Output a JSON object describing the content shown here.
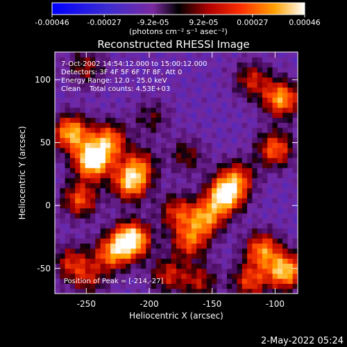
{
  "chart_data": {
    "type": "heatmap",
    "title": "Reconstructed RHESSI Image",
    "xlabel": "Heliocentric X (arcsec)",
    "ylabel": "Heliocentric Y (arcsec)",
    "xlim": [
      -275,
      -82
    ],
    "ylim": [
      -70,
      122
    ],
    "x_ticks": [
      -250,
      -200,
      -150,
      -100
    ],
    "y_ticks": [
      -50,
      0,
      50,
      100
    ],
    "grid": false,
    "colorbar": {
      "range": [
        -0.00046,
        0.00046
      ],
      "tick_values": [
        -0.00046,
        -0.00027,
        -9.2e-05,
        9.2e-05,
        0.00027,
        0.00046
      ],
      "tick_labels": [
        "-0.00046",
        "-0.00027",
        "-9.2e-05",
        "9.2e-05",
        "0.00027",
        "0.00046"
      ],
      "unit_label": "(photons cm⁻² s⁻¹ asec⁻²)"
    },
    "annotations": [
      "7-Oct-2002 14:54:12.000 to 15:00:12.000",
      "Detectors: 3F 4F 5F 6F 7F 8F, Att 0",
      "Energy Range: 12.0 - 25.0 keV",
      "Clean    Total counts: 4.53E+03"
    ],
    "peak_label": "Position of Peak = [-214,-27]",
    "blobs": [
      {
        "x": -262,
        "y": 58,
        "v": 0.00036
      },
      {
        "x": -245,
        "y": 36,
        "v": 0.00046
      },
      {
        "x": -232,
        "y": 52,
        "v": 0.0003
      },
      {
        "x": -215,
        "y": 18,
        "v": 0.00034
      },
      {
        "x": -208,
        "y": 32,
        "v": 0.00022
      },
      {
        "x": -214,
        "y": -27,
        "v": 0.00046
      },
      {
        "x": -230,
        "y": -38,
        "v": 0.00028
      },
      {
        "x": -255,
        "y": 5,
        "v": 0.00026
      },
      {
        "x": -262,
        "y": -45,
        "v": 0.0002
      },
      {
        "x": -248,
        "y": -58,
        "v": 0.00016
      },
      {
        "x": -140,
        "y": 8,
        "v": 0.00042
      },
      {
        "x": -155,
        "y": -10,
        "v": 0.0003
      },
      {
        "x": -168,
        "y": -28,
        "v": 0.00026
      },
      {
        "x": -130,
        "y": 22,
        "v": 0.00024
      },
      {
        "x": -178,
        "y": -5,
        "v": 0.00022
      },
      {
        "x": -95,
        "y": 85,
        "v": 0.00034
      },
      {
        "x": -100,
        "y": 45,
        "v": 0.00028
      },
      {
        "x": -118,
        "y": 100,
        "v": 0.0002
      },
      {
        "x": -92,
        "y": -52,
        "v": 0.00038
      },
      {
        "x": -110,
        "y": -35,
        "v": 0.0003
      },
      {
        "x": -120,
        "y": -60,
        "v": 0.00024
      },
      {
        "x": -185,
        "y": -55,
        "v": 0.0002
      },
      {
        "x": -160,
        "y": -60,
        "v": 0.00018
      },
      {
        "x": -250,
        "y": 110,
        "v": 0.00016
      },
      {
        "x": -170,
        "y": 40,
        "v": 0.00014
      },
      {
        "x": -198,
        "y": 70,
        "v": 0.00012
      }
    ]
  },
  "footer": {
    "timestamp": "2-May-2022 05:24"
  }
}
